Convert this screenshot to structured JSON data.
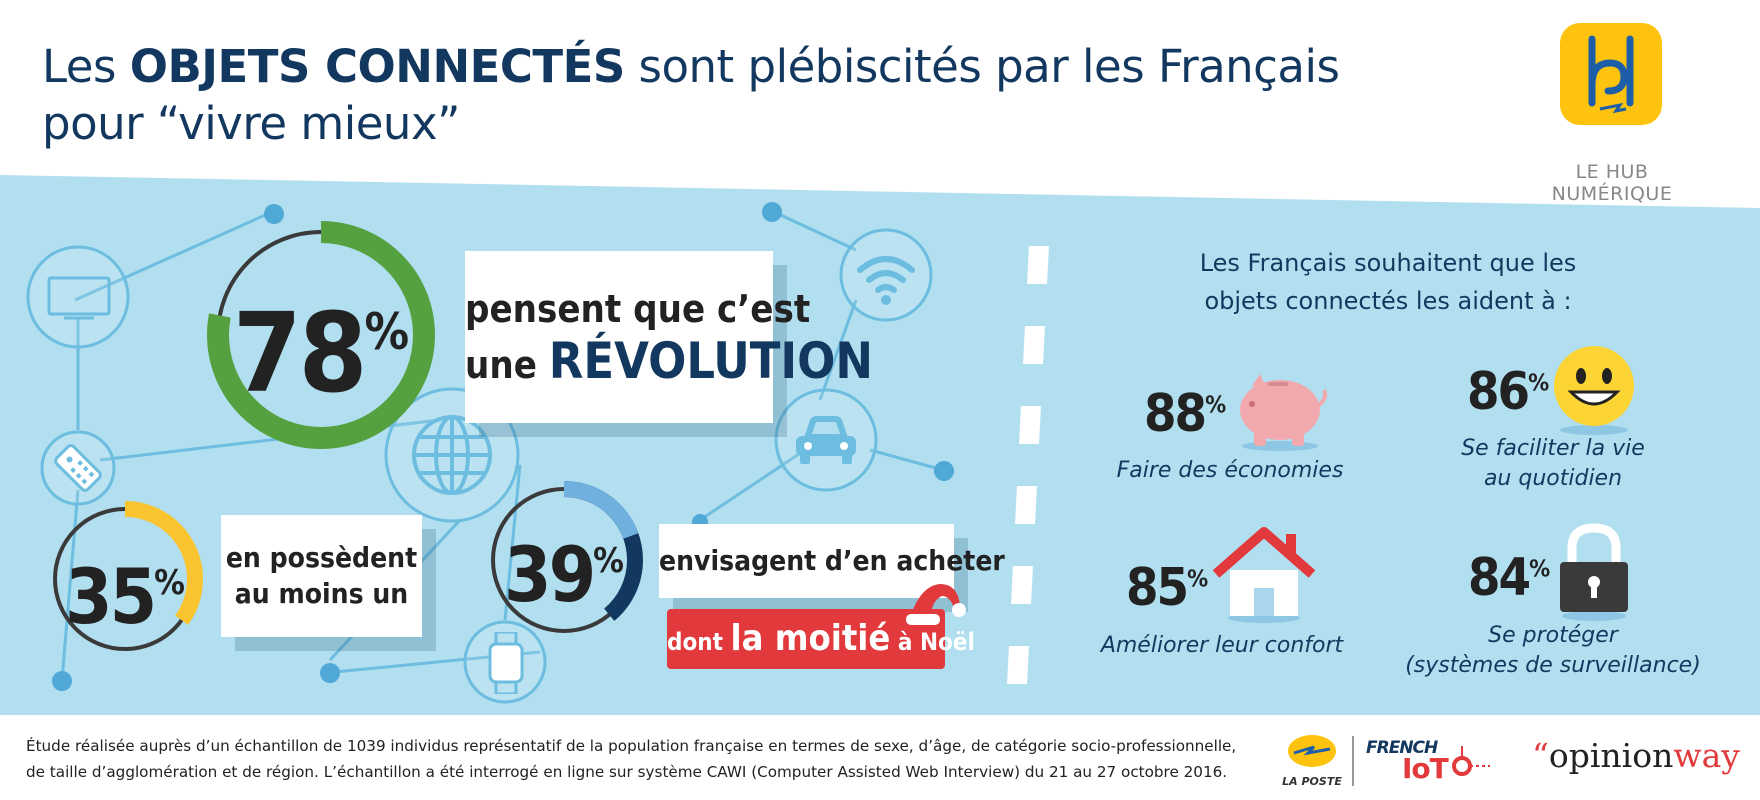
{
  "header": {
    "title_pre": "Les ",
    "title_bold": "OBJETS CONNECTÉS",
    "title_post": " sont plébiscités par les Français",
    "title_line2": "pour “vivre mieux”",
    "brand_label": "LE HUB NUMÉRIQUE",
    "logo_icon": "hub-numerique-logo"
  },
  "left": {
    "stat_78": {
      "value": "78",
      "unit": "%",
      "fraction": 0.78,
      "line1": "pensent que c’est",
      "line2_pre": "une ",
      "line2_bold": "RÉVOLUTION",
      "ring_color": "#56a13f"
    },
    "stat_35": {
      "value": "35",
      "unit": "%",
      "fraction": 0.35,
      "line1": "en possèdent",
      "line2": "au moins un",
      "ring_color": "#f9c430"
    },
    "stat_39": {
      "value": "39",
      "unit": "%",
      "fraction": 0.39,
      "line1": "envisagent d’en acheter",
      "noel_pre": "dont ",
      "noel_big": "la moitié",
      "noel_post": " à Noël",
      "ring_color": "#12385f",
      "ring_color_light": "#6fb0df"
    }
  },
  "right": {
    "heading_line1": "Les Français souhaitent que les",
    "heading_line2": "objets connectés les aident à :",
    "items": [
      {
        "value": "88",
        "unit": "%",
        "label1": "Faire des économies",
        "label2": "",
        "icon": "piggy-bank-icon"
      },
      {
        "value": "86",
        "unit": "%",
        "label1": "Se faciliter la vie",
        "label2": "au quotidien",
        "icon": "smiley-icon"
      },
      {
        "value": "85",
        "unit": "%",
        "label1": "Améliorer leur confort",
        "label2": "",
        "icon": "house-icon"
      },
      {
        "value": "84",
        "unit": "%",
        "label1": "Se protéger",
        "label2": "(systèmes de surveillance)",
        "icon": "padlock-icon"
      }
    ]
  },
  "footer": {
    "line1": "Étude réalisée auprès d’un échantillon de 1039 individus représentatif de la population française en termes de sexe, d’âge, de catégorie socio-professionnelle,",
    "line2": "de taille d’agglomération et de région. L’échantillon a été interrogé en ligne sur système CAWI (Computer Assisted Web Interview) du 21 au 27 octobre 2016.",
    "laposte": "LA POSTE",
    "french": "FRENCH",
    "iot": "IoT",
    "opinion_q": "“",
    "opinion": "opinion",
    "way": "way"
  },
  "colors": {
    "band": "#b1dff0",
    "navy": "#12385f",
    "red": "#e1393c"
  }
}
